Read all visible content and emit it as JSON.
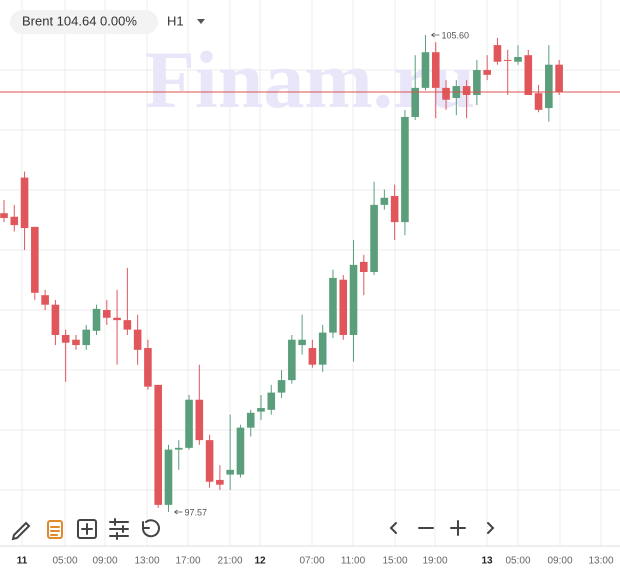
{
  "chart_data": {
    "type": "candlestick",
    "instrument": "Brent 104.64 0.00%",
    "timeframe": "H1",
    "watermark": "Finam.ru",
    "x_labels": [
      "11",
      "05:00",
      "09:00",
      "13:00",
      "17:00",
      "21:00",
      "12",
      "07:00",
      "11:00",
      "15:00",
      "19:00",
      "13",
      "05:00",
      "09:00",
      "13:00"
    ],
    "open": [
      102.6,
      102.54,
      103.2,
      102.37,
      101.22,
      101.06,
      100.55,
      100.47,
      100.38,
      100.62,
      100.97,
      100.84,
      100.8,
      100.64,
      100.33,
      99.71,
      97.69,
      98.62,
      98.65,
      99.46,
      98.78,
      98.11,
      98.2,
      98.2,
      98.99,
      99.26,
      99.29,
      99.58,
      99.79,
      100.38,
      100.33,
      100.05,
      100.59,
      101.48,
      100.55,
      101.78,
      101.61,
      102.74,
      102.89,
      102.45,
      104.22,
      104.71,
      105.31,
      104.71,
      104.54,
      104.74,
      104.59,
      105.01,
      105.43,
      105.18,
      105.15,
      105.26,
      104.62,
      104.37,
      105.1
    ],
    "high": [
      102.82,
      102.74,
      103.3,
      102.37,
      101.31,
      101.14,
      100.64,
      100.55,
      100.72,
      101.06,
      101.14,
      101.31,
      101.68,
      100.89,
      100.47,
      99.71,
      98.7,
      98.78,
      99.54,
      100.05,
      98.87,
      98.36,
      99.21,
      99.04,
      99.29,
      99.54,
      99.71,
      99.96,
      100.55,
      100.89,
      100.47,
      100.72,
      101.65,
      101.56,
      102.15,
      101.9,
      103.13,
      103.0,
      103.08,
      104.34,
      105.26,
      105.6,
      105.48,
      104.84,
      104.84,
      104.84,
      105.18,
      105.26,
      105.55,
      105.35,
      105.43,
      105.35,
      104.76,
      105.43,
      105.18
    ],
    "low": [
      102.45,
      102.29,
      101.98,
      101.14,
      100.97,
      100.38,
      99.76,
      100.3,
      100.3,
      100.55,
      100.72,
      100.05,
      100.55,
      100.05,
      99.63,
      97.64,
      97.57,
      98.28,
      98.62,
      98.7,
      97.98,
      97.94,
      97.94,
      98.15,
      98.84,
      99.12,
      99.21,
      99.49,
      99.73,
      100.22,
      100.0,
      99.93,
      100.5,
      100.47,
      100.1,
      101.22,
      101.56,
      102.66,
      102.15,
      102.23,
      104.17,
      104.67,
      104.2,
      104.34,
      104.25,
      104.2,
      104.42,
      104.84,
      105.1,
      104.59,
      105.1,
      104.59,
      104.3,
      104.14,
      104.59
    ],
    "close": [
      102.52,
      102.4,
      102.35,
      101.26,
      101.06,
      100.55,
      100.42,
      100.38,
      100.64,
      100.99,
      100.84,
      100.8,
      100.64,
      100.3,
      99.68,
      97.69,
      98.62,
      98.65,
      99.46,
      98.78,
      98.08,
      98.03,
      98.28,
      98.99,
      99.24,
      99.32,
      99.58,
      99.79,
      100.47,
      100.47,
      100.05,
      100.59,
      101.51,
      100.55,
      101.73,
      101.61,
      102.74,
      102.86,
      102.45,
      104.22,
      104.71,
      105.31,
      104.71,
      104.51,
      104.74,
      104.59,
      105.01,
      104.93,
      105.15,
      105.18,
      105.23,
      104.59,
      104.34,
      105.1,
      104.64
    ],
    "up_color": "#5a9e7c",
    "down_color": "#e0565b",
    "price_line": 104.64,
    "price_line_color": "#d9534f",
    "annotations": [
      "105.60",
      "97.57"
    ]
  }
}
